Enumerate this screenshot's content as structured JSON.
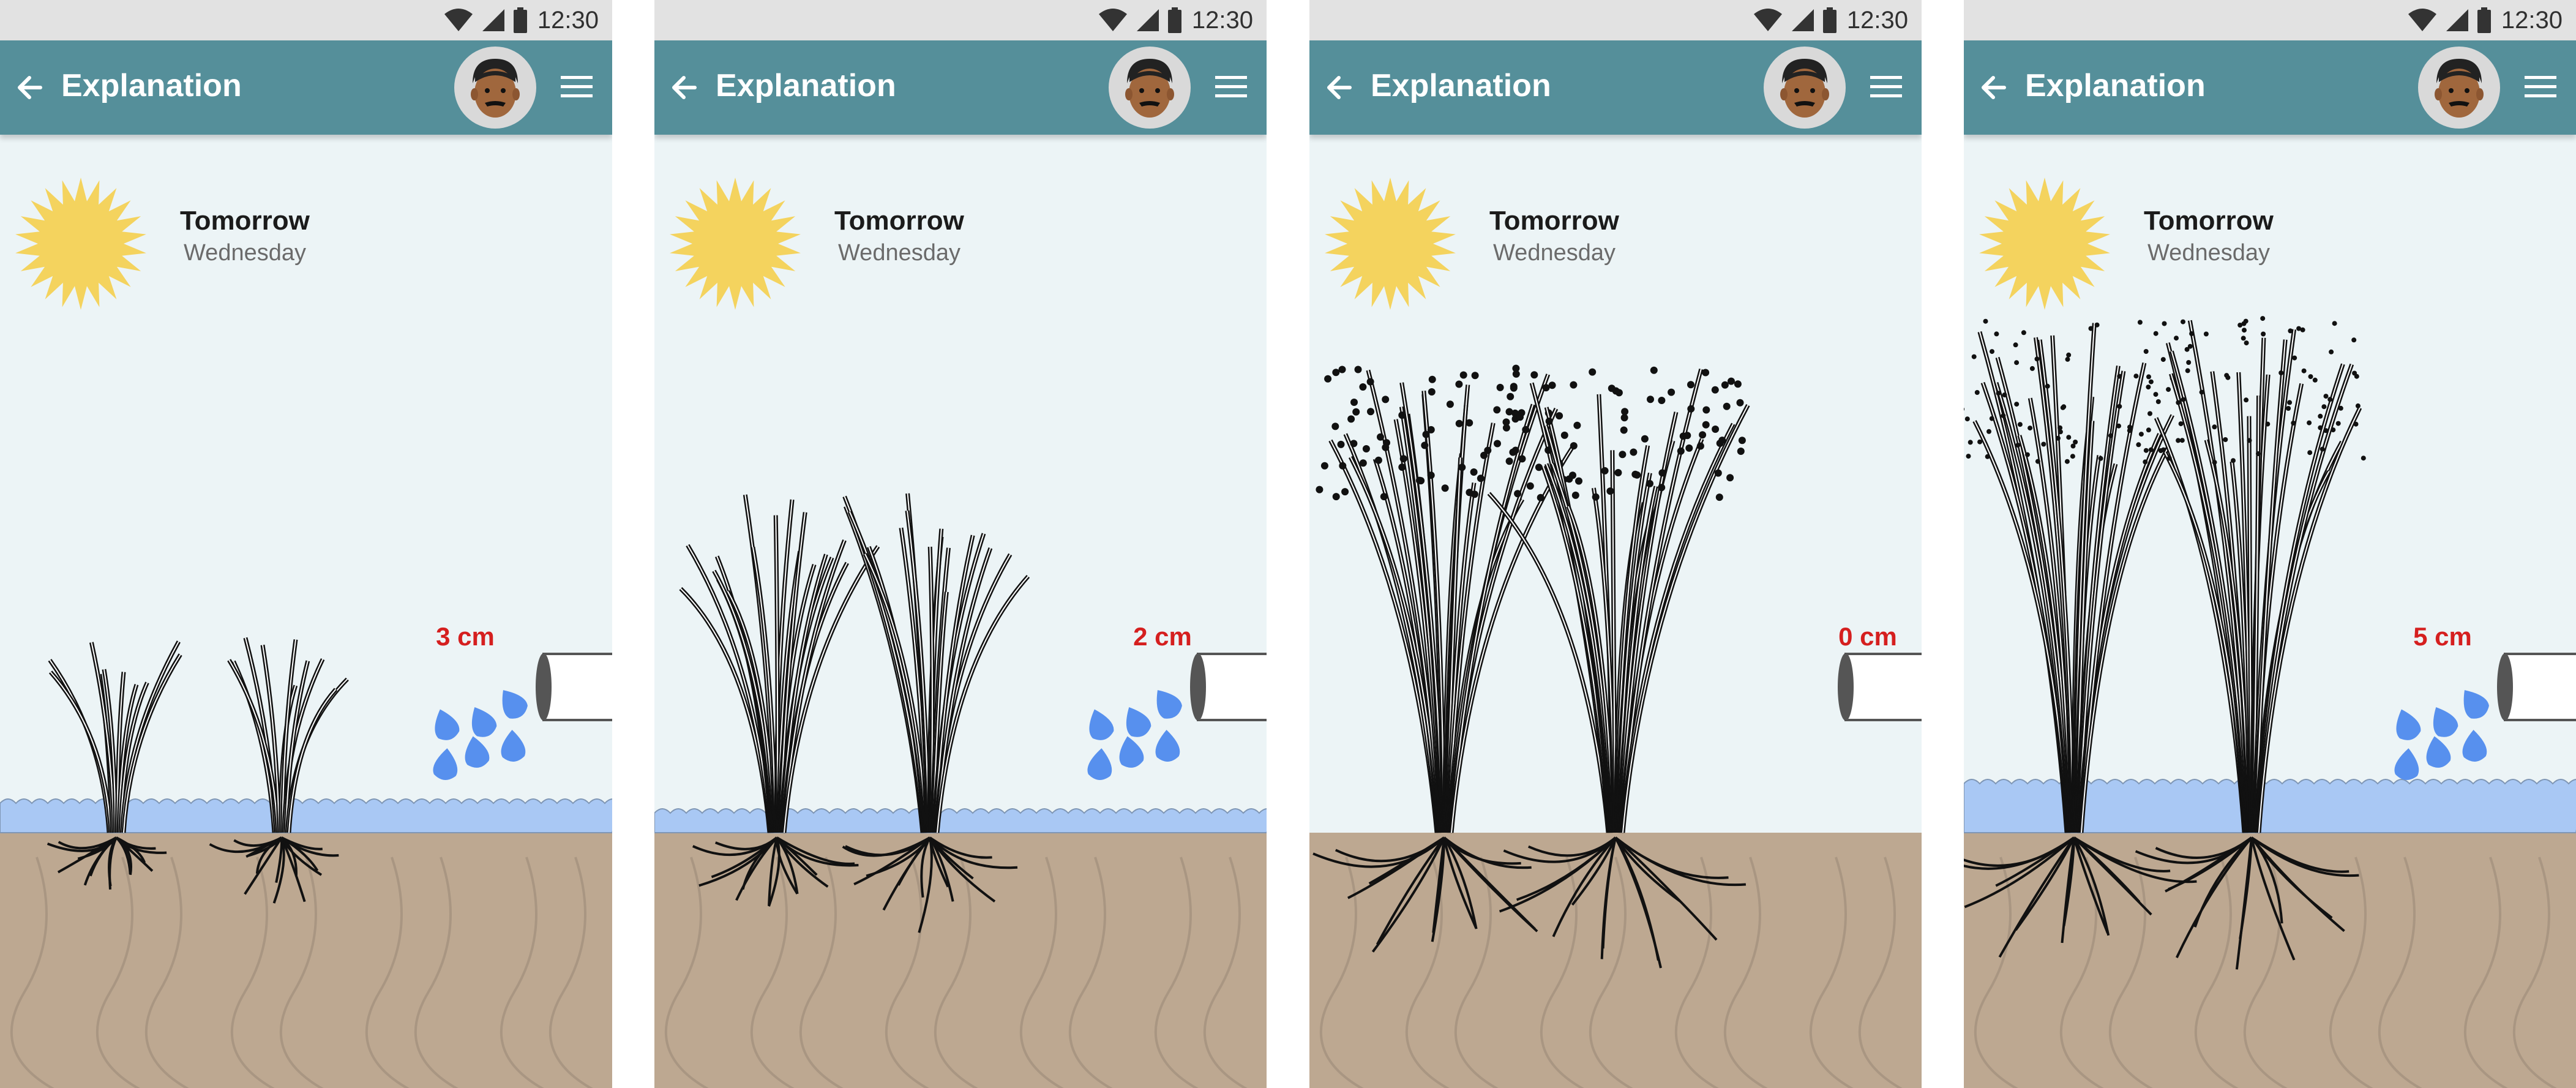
{
  "status": {
    "time": "12:30"
  },
  "colors": {
    "appbar": "#558f9a",
    "sky": "#ecf4f6",
    "soil": "#bda891",
    "water": "#a9c8f4",
    "drop": "#5790ee",
    "level_text": "#d51f1f",
    "sun": "#f4d35e"
  },
  "screens": [
    {
      "header": {
        "title": "Explanation",
        "back_icon": "arrow-left-icon",
        "menu_icon": "hamburger-menu-icon"
      },
      "forecast": {
        "day": "Tomorrow",
        "weekday": "Wednesday",
        "icon": "sun-icon"
      },
      "water_level": {
        "label": "3 cm",
        "value_cm": 3,
        "watering": true
      },
      "plant_stage": "seedling"
    },
    {
      "header": {
        "title": "Explanation",
        "back_icon": "arrow-left-icon",
        "menu_icon": "hamburger-menu-icon"
      },
      "forecast": {
        "day": "Tomorrow",
        "weekday": "Wednesday",
        "icon": "sun-icon"
      },
      "water_level": {
        "label": "2 cm",
        "value_cm": 2,
        "watering": true
      },
      "plant_stage": "tillering"
    },
    {
      "header": {
        "title": "Explanation",
        "back_icon": "arrow-left-icon",
        "menu_icon": "hamburger-menu-icon"
      },
      "forecast": {
        "day": "Tomorrow",
        "weekday": "Wednesday",
        "icon": "sun-icon"
      },
      "water_level": {
        "label": "0 cm",
        "value_cm": 0,
        "watering": false
      },
      "plant_stage": "ripening"
    },
    {
      "header": {
        "title": "Explanation",
        "back_icon": "arrow-left-icon",
        "menu_icon": "hamburger-menu-icon"
      },
      "forecast": {
        "day": "Tomorrow",
        "weekday": "Wednesday",
        "icon": "sun-icon"
      },
      "water_level": {
        "label": "5 cm",
        "value_cm": 5,
        "watering": true
      },
      "plant_stage": "flowering"
    }
  ]
}
